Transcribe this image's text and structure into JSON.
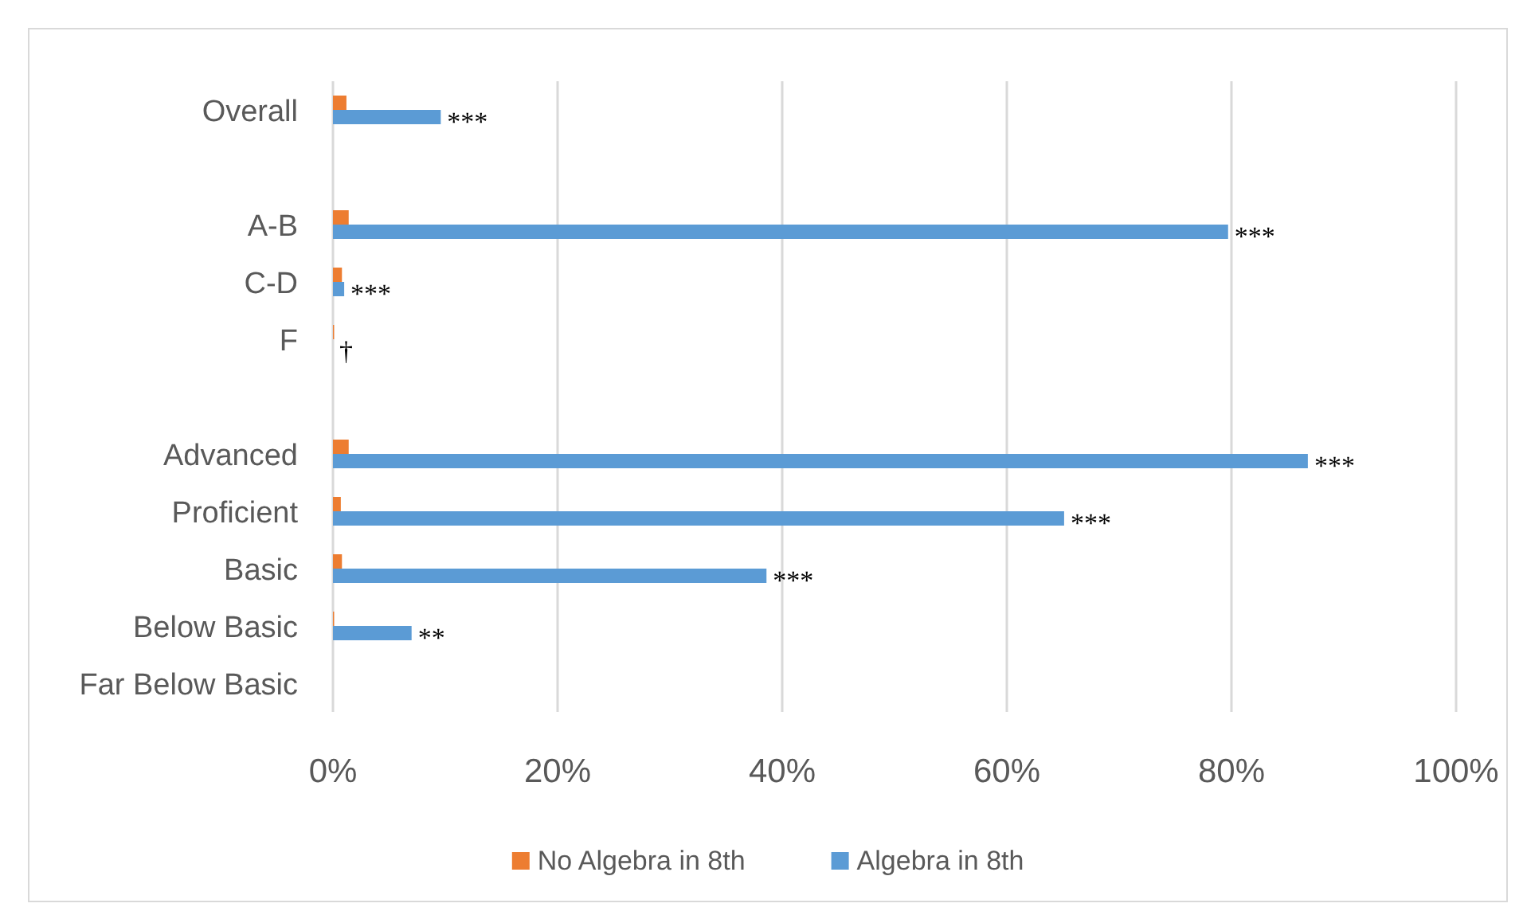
{
  "chart_data": {
    "type": "bar",
    "orientation": "horizontal",
    "categories": [
      "Overall",
      null,
      "A-B",
      "C-D",
      "F",
      null,
      "Advanced",
      "Proficient",
      "Basic",
      "Below Basic",
      "Far Below Basic"
    ],
    "series": [
      {
        "name": "No Algebra in 8th",
        "color": "#ed7d31",
        "values": [
          1.2,
          null,
          1.4,
          0.8,
          0.1,
          null,
          1.4,
          0.7,
          0.8,
          0.1,
          0
        ]
      },
      {
        "name": "Algebra in 8th",
        "color": "#5b9bd5",
        "values": [
          9.6,
          null,
          79.7,
          1.0,
          0,
          null,
          86.8,
          65.1,
          38.6,
          7.0,
          0
        ]
      }
    ],
    "xlim": [
      0,
      100
    ],
    "xticks": [
      {
        "value": 0,
        "label": "0%"
      },
      {
        "value": 20,
        "label": "20%"
      },
      {
        "value": 40,
        "label": "40%"
      },
      {
        "value": 60,
        "label": "60%"
      },
      {
        "value": 80,
        "label": "80%"
      },
      {
        "value": 100,
        "label": "100%"
      }
    ],
    "grid": "x",
    "legend": "bottom",
    "annotations": [
      {
        "text": "***",
        "x": 9.6,
        "y": "Overall"
      },
      {
        "text": "***",
        "x": 79.7,
        "y": "A-B"
      },
      {
        "text": "***",
        "x": 1.0,
        "y": "C-D"
      },
      {
        "text": "†",
        "x": 0,
        "y": "F"
      },
      {
        "text": "***",
        "x": 86.8,
        "y": "Advanced"
      },
      {
        "text": "***",
        "x": 65.1,
        "y": "Proficient"
      },
      {
        "text": "***",
        "x": 38.6,
        "y": "Basic"
      },
      {
        "text": "**",
        "x": 7.0,
        "y": "Below Basic"
      }
    ]
  }
}
